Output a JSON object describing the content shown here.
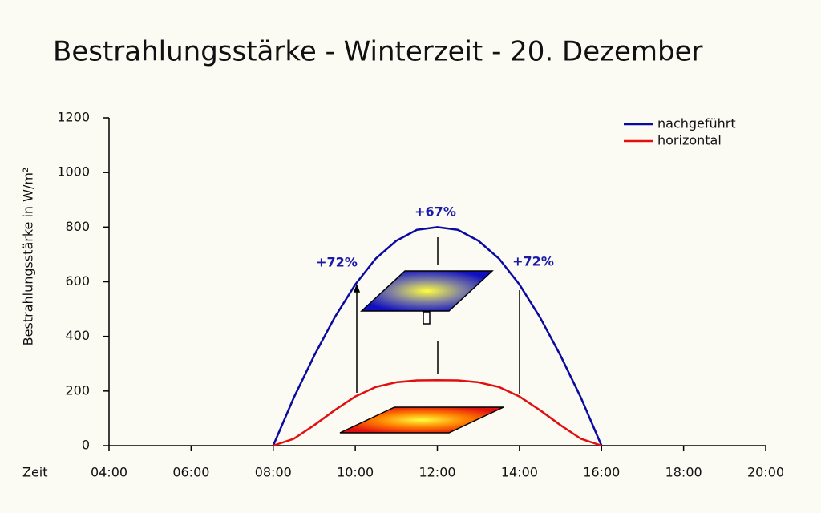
{
  "chart_data": {
    "type": "line",
    "title": "Bestrahlungsstärke - Winterzeit - 20. Dezember",
    "y_label": "Bestrahlungsstärke in W/m²",
    "x_label": "Zeit",
    "x": [
      8,
      8.5,
      9,
      9.5,
      10,
      10.5,
      11,
      11.5,
      12,
      12.5,
      13,
      13.5,
      14,
      14.5,
      15,
      15.5,
      16
    ],
    "series": [
      {
        "name": "nachgeführt",
        "color": "#0a0aa0",
        "values": [
          0,
          175,
          330,
          470,
          590,
          685,
          750,
          790,
          800,
          790,
          750,
          685,
          590,
          470,
          330,
          175,
          0
        ]
      },
      {
        "name": "horizontal",
        "color": "#e01010",
        "values": [
          0,
          25,
          75,
          130,
          180,
          215,
          232,
          239,
          240,
          239,
          232,
          215,
          180,
          130,
          75,
          25,
          0
        ]
      }
    ],
    "xlim": [
      4,
      20
    ],
    "xticks": [
      {
        "value": 4,
        "label": "04:00"
      },
      {
        "value": 6,
        "label": "06:00"
      },
      {
        "value": 8,
        "label": "08:00"
      },
      {
        "value": 10,
        "label": "10:00"
      },
      {
        "value": 12,
        "label": "12:00"
      },
      {
        "value": 14,
        "label": "14:00"
      },
      {
        "value": 16,
        "label": "16:00"
      },
      {
        "value": 18,
        "label": "18:00"
      },
      {
        "value": 20,
        "label": "20:00"
      }
    ],
    "ylim": [
      0,
      1200
    ],
    "yticks": [
      0,
      200,
      400,
      600,
      800,
      1000,
      1200
    ],
    "legend": "upper right",
    "annotations": [
      "+67%",
      "+72%",
      "+72%"
    ]
  }
}
